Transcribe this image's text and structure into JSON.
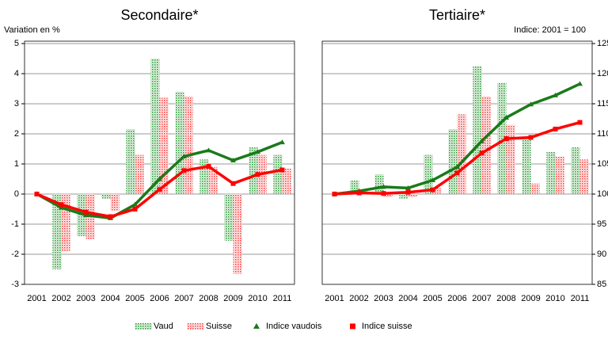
{
  "chart_data": {
    "type": "bar_line_panels",
    "ylabel": "Variation en %",
    "y2label": "Indice: 2001 = 100",
    "categories": [
      "2001",
      "2002",
      "2003",
      "2004",
      "2005",
      "2006",
      "2007",
      "2008",
      "2009",
      "2010",
      "2011"
    ],
    "ylim": [
      -3,
      5
    ],
    "yticks": [
      -3,
      -2,
      -1,
      0,
      1,
      2,
      3,
      4,
      5
    ],
    "y2lim": [
      85,
      125
    ],
    "y2ticks": [
      85,
      90,
      95,
      100,
      105,
      110,
      115,
      120,
      125
    ],
    "grid": true,
    "legend": "bottom",
    "series": [
      {
        "name": "Vaud",
        "color": "#2e9a3a",
        "kind": "bar",
        "axis": "y"
      },
      {
        "name": "Suisse",
        "color": "#ff4040",
        "kind": "bar",
        "axis": "y"
      },
      {
        "name": "Indice vaudois",
        "color": "#1a7a1a",
        "kind": "line",
        "marker": "triangle",
        "axis": "y2"
      },
      {
        "name": "Indice suisse",
        "color": "#ff0000",
        "kind": "line",
        "marker": "square",
        "axis": "y2"
      }
    ],
    "panels": [
      {
        "title": "Secondaire*",
        "values": [
          [
            0,
            -2.5,
            -1.4,
            -0.15,
            2.15,
            4.5,
            3.4,
            1.15,
            -1.55,
            1.55,
            1.3
          ],
          [
            0,
            -1.9,
            -1.5,
            -0.55,
            1.3,
            3.2,
            3.25,
            0.9,
            -2.65,
            1.3,
            0.85
          ],
          [
            100,
            97.75,
            96.5,
            96.0,
            98.25,
            102.5,
            106.25,
            107.25,
            105.6,
            107,
            108.6
          ],
          [
            100,
            98.25,
            97,
            96.25,
            97.5,
            100.75,
            103.9,
            104.6,
            101.75,
            103.25,
            104
          ]
        ]
      },
      {
        "title": "Tertiaire*",
        "values": [
          [
            0,
            0.45,
            0.65,
            -0.15,
            1.3,
            2.15,
            4.25,
            3.7,
            1.85,
            1.4,
            1.55
          ],
          [
            0,
            0.1,
            -0.1,
            -0.1,
            0.2,
            2.65,
            3.25,
            2.3,
            0.35,
            1.25,
            1.15
          ],
          [
            100,
            100.5,
            101.2,
            101,
            102.3,
            104.5,
            108.8,
            112.7,
            114.9,
            116.4,
            118.3
          ],
          [
            100,
            100.2,
            100.1,
            100.3,
            100.7,
            103.5,
            106.8,
            109.2,
            109.4,
            110.8,
            111.9
          ]
        ]
      }
    ]
  }
}
